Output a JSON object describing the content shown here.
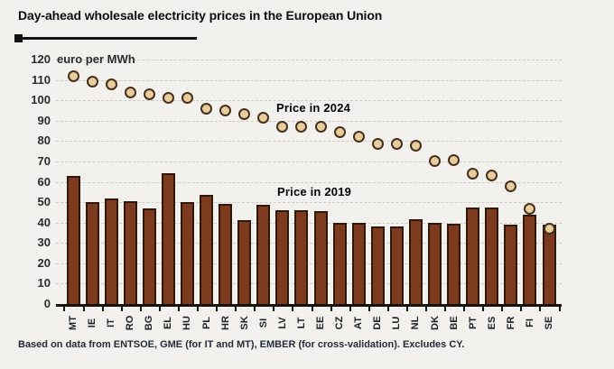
{
  "header": {
    "title": "Day-ahead wholesale electricity prices in the European Union"
  },
  "footer": {
    "note": "Based on data from ENTSOE, GME (for IT and MT), EMBER (for cross-validation). Excludes CY."
  },
  "colors": {
    "background": "#f3f1ee",
    "bar_fill": "#7c3b1f",
    "bar_border": "#30190b",
    "dot_fill": "#e9cc9e",
    "dot_border": "#45301b",
    "label_2024": "#d9b17e",
    "label_2019": "#5e2a15",
    "axis": "#16130f"
  },
  "chart_data": {
    "type": "bar",
    "title": "Day-ahead wholesale electricity prices in the European Union",
    "unit_label": "euro per MWh",
    "xlabel": "",
    "ylabel": "euro per MWh",
    "ylim": [
      0,
      120
    ],
    "yticks": [
      0,
      10,
      20,
      30,
      40,
      50,
      60,
      70,
      80,
      90,
      100,
      110,
      120
    ],
    "grid": true,
    "legend_position": "inline annotations",
    "categories": [
      "MT",
      "IE",
      "IT",
      "RO",
      "BG",
      "EL",
      "HU",
      "PL",
      "HR",
      "SK",
      "SI",
      "LV",
      "LT",
      "EE",
      "CZ",
      "AT",
      "DE",
      "LU",
      "NL",
      "DK",
      "BE",
      "PT",
      "ES",
      "FR",
      "FI",
      "SE"
    ],
    "series": [
      {
        "name": "Price in 2019",
        "type": "bar",
        "color": "#7c3b1f",
        "values": [
          63,
          50,
          52,
          50.5,
          47,
          64,
          50,
          53.5,
          49,
          41,
          48.5,
          46,
          46,
          45.5,
          40,
          40,
          38,
          38,
          41.5,
          40,
          39.5,
          47.5,
          47.5,
          39,
          44,
          39
        ]
      },
      {
        "name": "Price in 2024",
        "type": "scatter",
        "color": "#e9cc9e",
        "values": [
          112,
          109,
          108,
          104,
          103,
          101,
          101,
          96,
          95,
          93,
          91.5,
          87,
          87,
          87,
          84.5,
          82,
          78.5,
          78.5,
          77.5,
          70,
          70.5,
          64,
          63,
          58,
          46.5,
          37
        ]
      }
    ]
  }
}
